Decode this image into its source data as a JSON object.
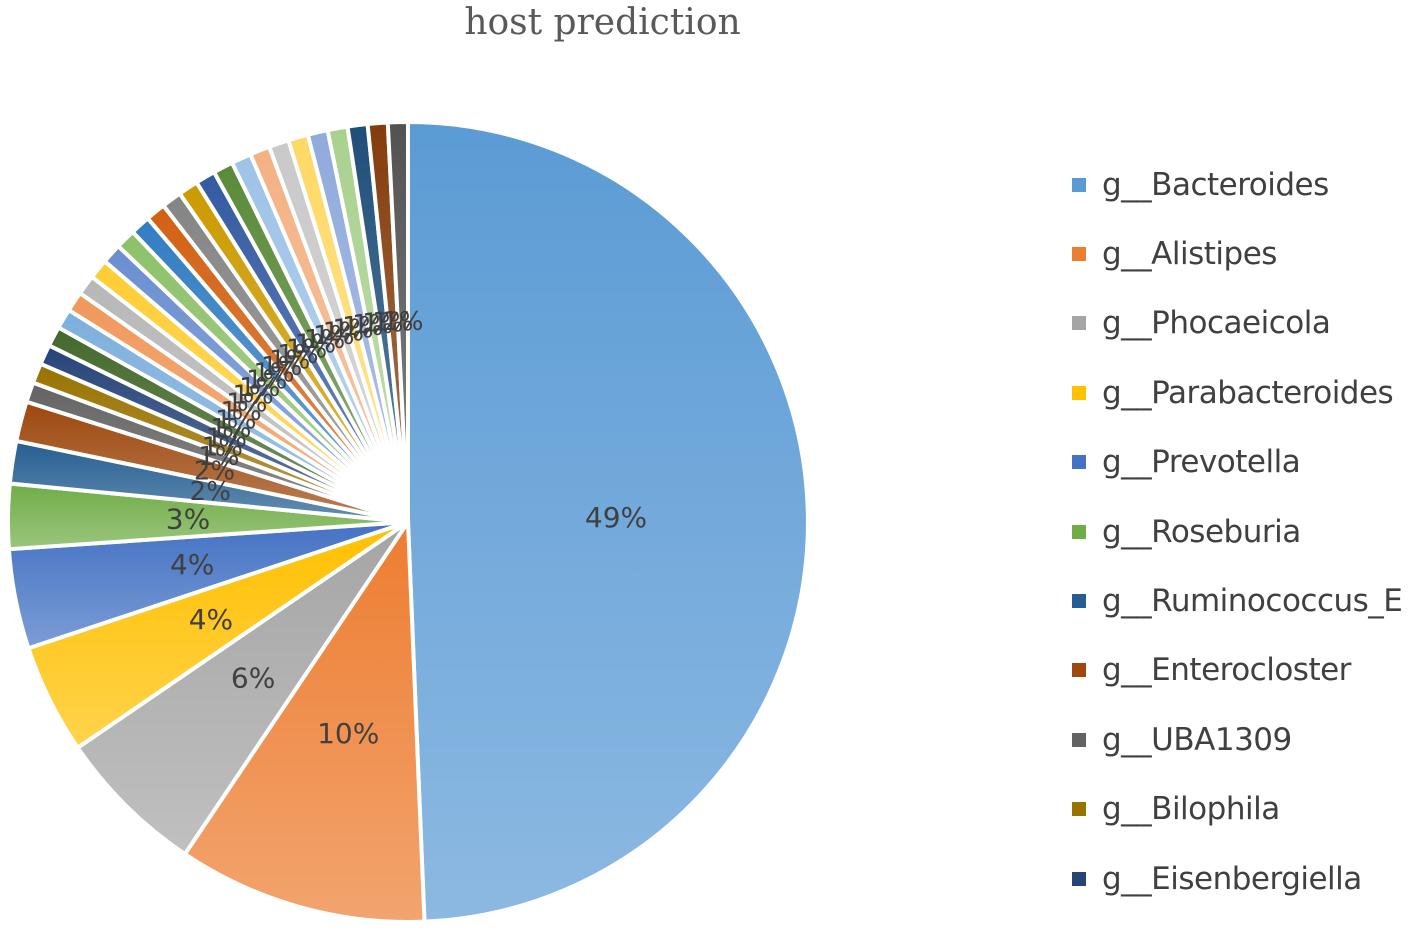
{
  "chart_data": {
    "type": "pie",
    "title": "host prediction",
    "legend_position": "right",
    "slices": [
      {
        "label": "g__Bacteroides",
        "value": 49,
        "data_label": "49%",
        "color": "#5b9bd5"
      },
      {
        "label": "g__Alistipes",
        "value": 10,
        "data_label": "10%",
        "color": "#ed7d31"
      },
      {
        "label": "g__Phocaeicola",
        "value": 6,
        "data_label": "6%",
        "color": "#a5a5a5"
      },
      {
        "label": "g__Parabacteroides",
        "value": 4.4,
        "data_label": "4%",
        "color": "#ffc000"
      },
      {
        "label": "g__Prevotella",
        "value": 4.0,
        "data_label": "4%",
        "color": "#4472c4"
      },
      {
        "label": "g__Roseburia",
        "value": 2.6,
        "data_label": "3%",
        "color": "#70ad47"
      },
      {
        "label": "g__Ruminococcus_E",
        "value": 1.7,
        "data_label": "2%",
        "color": "#255e91"
      },
      {
        "label": "g__Enterocloster",
        "value": 1.6,
        "data_label": "2%",
        "color": "#9e480e"
      },
      {
        "label": "g__UBA1309",
        "value": 0.8,
        "data_label": "1%",
        "color": "#636363"
      },
      {
        "label": "g__Bilophila",
        "value": 0.8,
        "data_label": "1%",
        "color": "#997300"
      },
      {
        "label": "g__Eisenbergiella",
        "value": 0.8,
        "data_label": "1%",
        "color": "#264478"
      },
      {
        "label": "",
        "value": 0.8,
        "data_label": "1%",
        "color": "#43682b"
      },
      {
        "label": "",
        "value": 0.8,
        "data_label": "1%",
        "color": "#7cafdd"
      },
      {
        "label": "",
        "value": 0.8,
        "data_label": "1%",
        "color": "#f1975a"
      },
      {
        "label": "",
        "value": 0.8,
        "data_label": "1%",
        "color": "#b7b7b7"
      },
      {
        "label": "",
        "value": 0.8,
        "data_label": "1%",
        "color": "#ffcd33"
      },
      {
        "label": "",
        "value": 0.8,
        "data_label": "1%",
        "color": "#698ed0"
      },
      {
        "label": "",
        "value": 0.8,
        "data_label": "1%",
        "color": "#8cc168"
      },
      {
        "label": "",
        "value": 0.8,
        "data_label": "1%",
        "color": "#327dc2"
      },
      {
        "label": "",
        "value": 0.8,
        "data_label": "1%",
        "color": "#d26012"
      },
      {
        "label": "",
        "value": 0.8,
        "data_label": "1%",
        "color": "#848484"
      },
      {
        "label": "",
        "value": 0.8,
        "data_label": "1%",
        "color": "#cc9a00"
      },
      {
        "label": "",
        "value": 0.8,
        "data_label": "1%",
        "color": "#335aa1"
      },
      {
        "label": "",
        "value": 0.8,
        "data_label": "1%",
        "color": "#5a8a39"
      },
      {
        "label": "",
        "value": 0.8,
        "data_label": "1%",
        "color": "#9dc3e6"
      },
      {
        "label": "",
        "value": 0.8,
        "data_label": "1%",
        "color": "#f4b183"
      },
      {
        "label": "",
        "value": 0.8,
        "data_label": "1%",
        "color": "#c9c9c9"
      },
      {
        "label": "",
        "value": 0.8,
        "data_label": "1%",
        "color": "#ffd966"
      },
      {
        "label": "",
        "value": 0.8,
        "data_label": "1%",
        "color": "#8faadc"
      },
      {
        "label": "",
        "value": 0.8,
        "data_label": "1%",
        "color": "#a9d18e"
      },
      {
        "label": "",
        "value": 0.8,
        "data_label": "1%",
        "color": "#1f4e79"
      },
      {
        "label": "",
        "value": 0.8,
        "data_label": "1%",
        "color": "#843c0c"
      },
      {
        "label": "",
        "value": 0.8,
        "data_label": "1%",
        "color": "#525252"
      }
    ],
    "legend_entries": [
      "g__Bacteroides",
      "g__Alistipes",
      "g__Phocaeicola",
      "g__Parabacteroides",
      "g__Prevotella",
      "g__Roseburia",
      "g__Ruminococcus_E",
      "g__Enterocloster",
      "g__UBA1309",
      "g__Bilophila",
      "g__Eisenbergiella"
    ]
  }
}
